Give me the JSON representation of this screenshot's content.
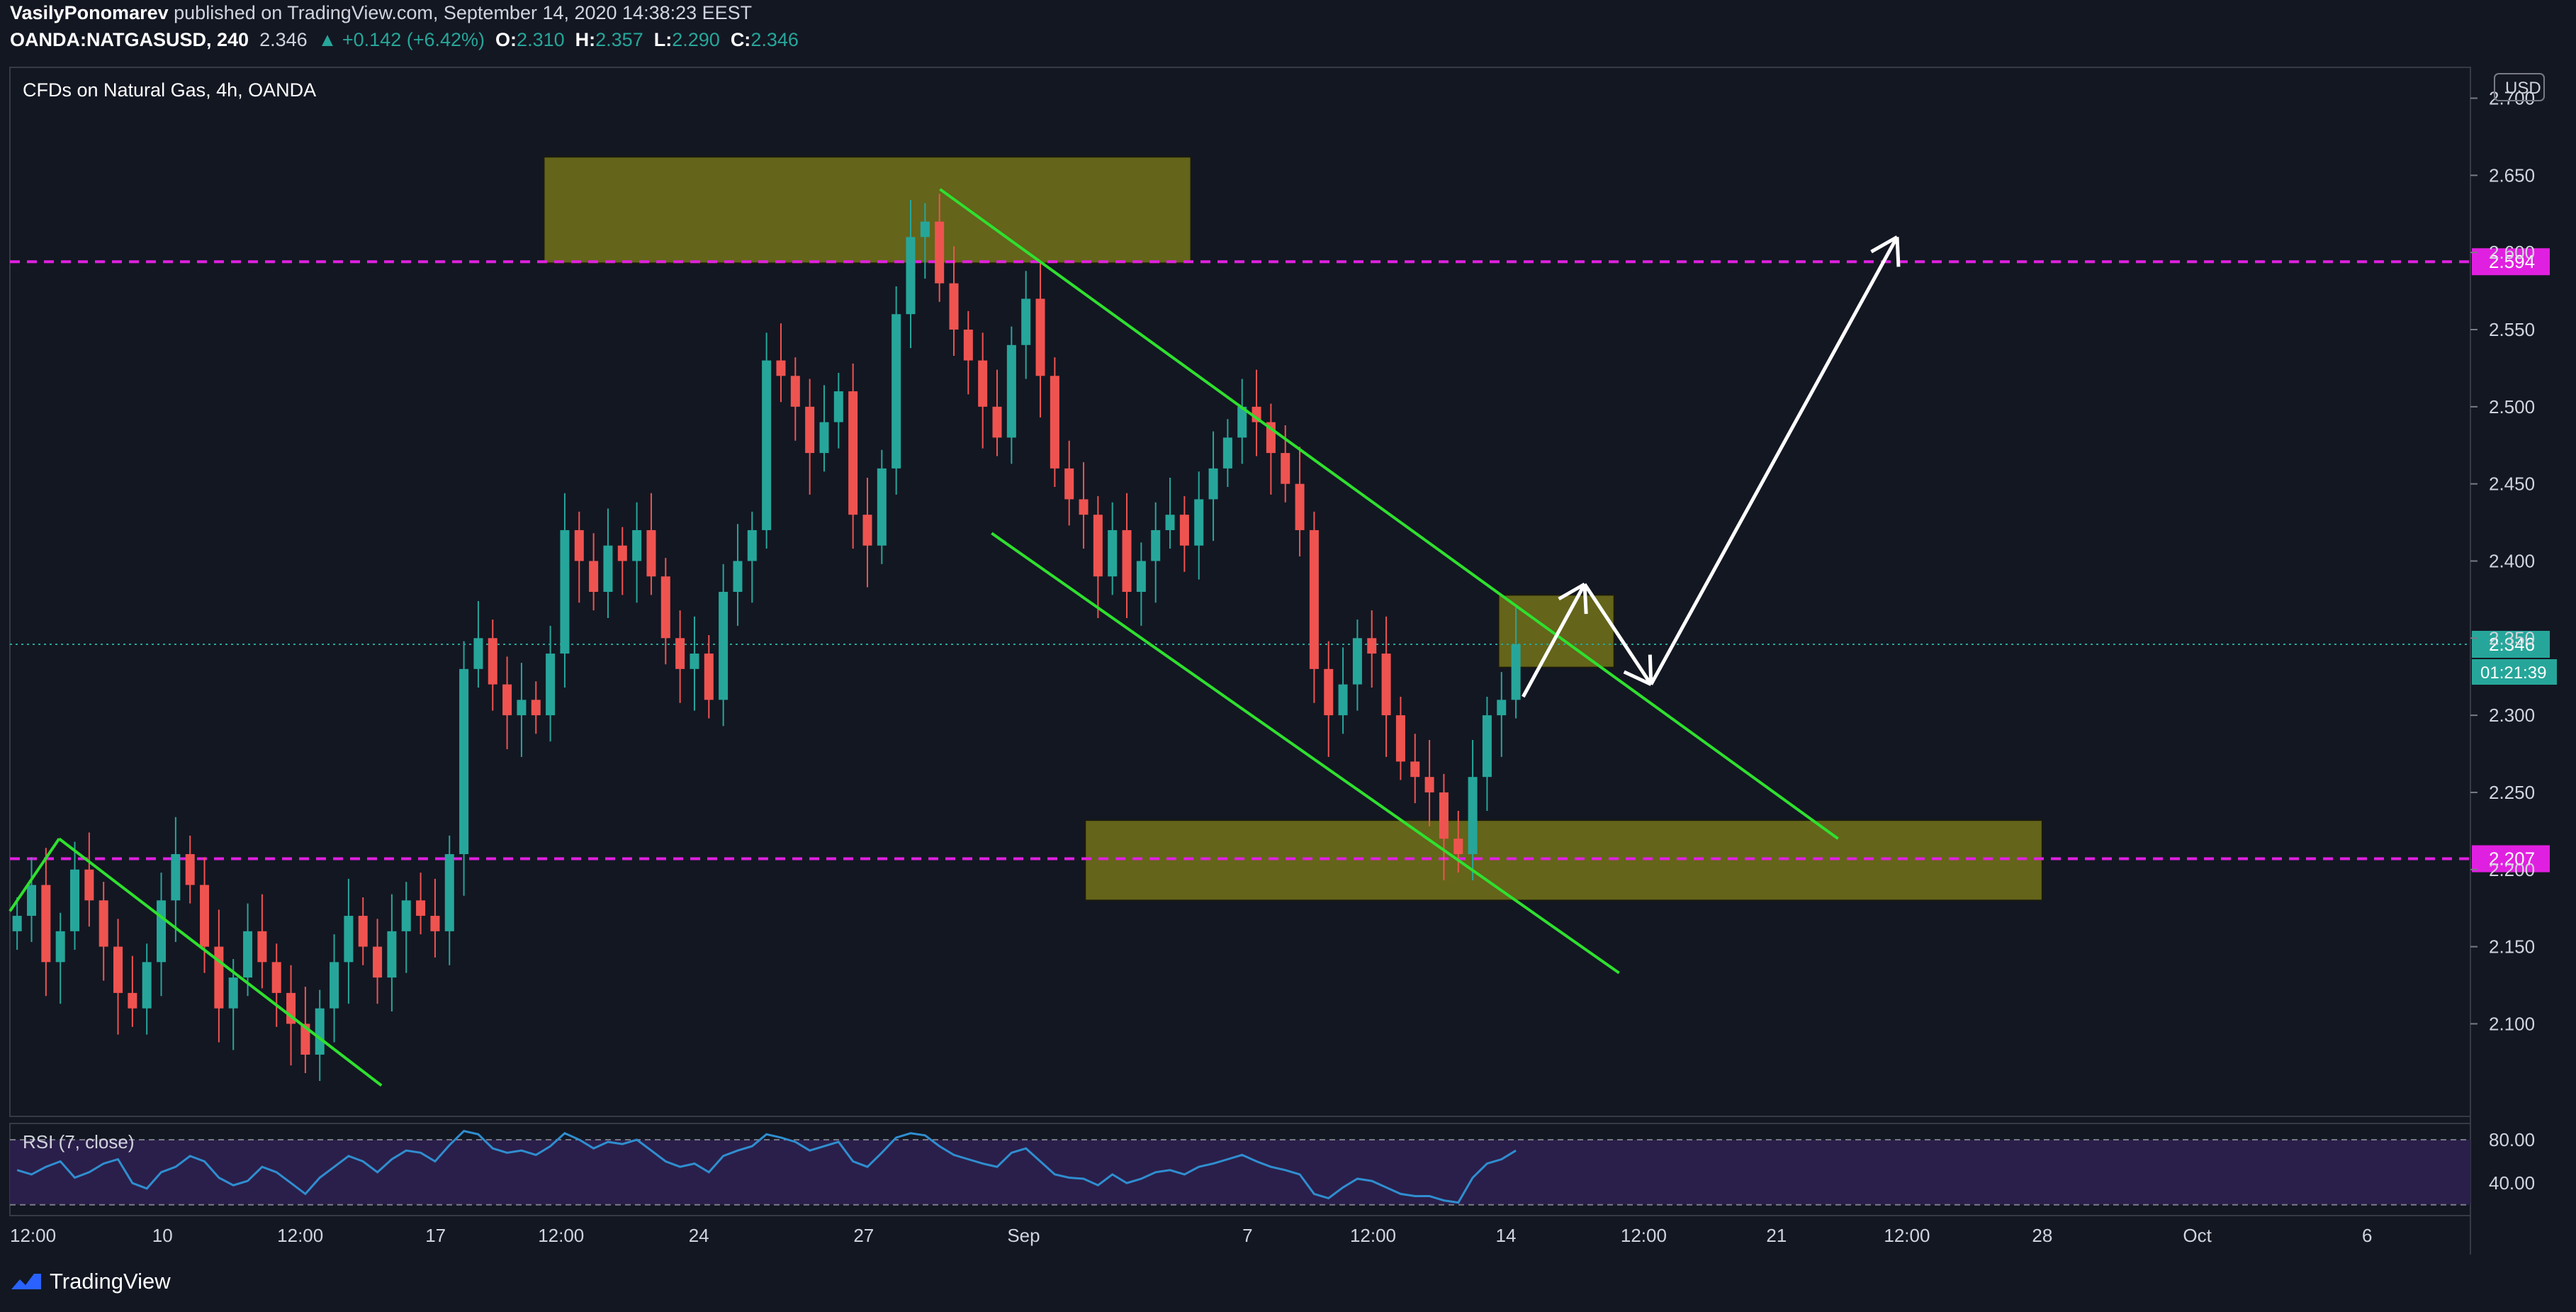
{
  "header": {
    "author": "VasilyPonomarev",
    "published": "published on TradingView.com, September 14, 2020 14:38:23 EEST",
    "symbol": "OANDA:NATGASUSD, 240",
    "last": "2.346",
    "change": "▲ +0.142 (+6.42%)",
    "o_label": "O:",
    "o": "2.310",
    "h_label": "H:",
    "h": "2.357",
    "l_label": "L:",
    "l": "2.290",
    "c_label": "C:",
    "c": "2.346"
  },
  "chart_title": "CFDs on Natural Gas, 4h, OANDA",
  "currency_badge": "USD",
  "rsi_title": "RSI (7, close)",
  "footer_brand": "TradingView",
  "colors": {
    "background": "#131722",
    "up": "#26a69a",
    "down": "#ef5350",
    "zone": "#6b6b1a",
    "trend": "#2fe02f",
    "level": "#e020e0",
    "rsi_line": "#2f8ed0",
    "rsi_band": "#2a1f4a"
  },
  "chart_data": {
    "type": "candlestick",
    "title": "CFDs on Natural Gas, 4h, OANDA",
    "ylim": [
      2.04,
      2.72
    ],
    "yticks": [
      "2.700",
      "2.650",
      "2.600",
      "2.550",
      "2.500",
      "2.450",
      "2.400",
      "2.350",
      "2.300",
      "2.250",
      "2.200",
      "2.150",
      "2.100"
    ],
    "xticks": [
      {
        "label": "12:00",
        "pos": 0.0
      },
      {
        "label": "10",
        "pos": 0.062
      },
      {
        "label": "12:00",
        "pos": 0.118
      },
      {
        "label": "17",
        "pos": 0.173
      },
      {
        "label": "12:00",
        "pos": 0.224
      },
      {
        "label": "24",
        "pos": 0.28
      },
      {
        "label": "27",
        "pos": 0.347
      },
      {
        "label": "Sep",
        "pos": 0.412
      },
      {
        "label": "7",
        "pos": 0.503
      },
      {
        "label": "12:00",
        "pos": 0.554
      },
      {
        "label": "14",
        "pos": 0.608
      },
      {
        "label": "12:00",
        "pos": 0.664
      },
      {
        "label": "21",
        "pos": 0.718
      },
      {
        "label": "12:00",
        "pos": 0.771
      },
      {
        "label": "28",
        "pos": 0.826
      },
      {
        "label": "Oct",
        "pos": 0.889
      },
      {
        "label": "6",
        "pos": 0.958
      }
    ],
    "close_series": [
      2.17,
      2.19,
      2.14,
      2.16,
      2.2,
      2.18,
      2.15,
      2.12,
      2.11,
      2.14,
      2.18,
      2.21,
      2.19,
      2.15,
      2.11,
      2.13,
      2.16,
      2.14,
      2.12,
      2.1,
      2.08,
      2.11,
      2.14,
      2.17,
      2.15,
      2.13,
      2.16,
      2.18,
      2.17,
      2.16,
      2.21,
      2.33,
      2.35,
      2.32,
      2.3,
      2.31,
      2.3,
      2.34,
      2.42,
      2.4,
      2.38,
      2.41,
      2.4,
      2.42,
      2.39,
      2.35,
      2.33,
      2.34,
      2.31,
      2.38,
      2.4,
      2.42,
      2.53,
      2.52,
      2.5,
      2.47,
      2.49,
      2.51,
      2.43,
      2.41,
      2.46,
      2.56,
      2.61,
      2.62,
      2.58,
      2.55,
      2.53,
      2.5,
      2.48,
      2.54,
      2.57,
      2.52,
      2.46,
      2.44,
      2.43,
      2.39,
      2.42,
      2.38,
      2.4,
      2.42,
      2.43,
      2.41,
      2.44,
      2.46,
      2.48,
      2.5,
      2.49,
      2.47,
      2.45,
      2.42,
      2.33,
      2.3,
      2.32,
      2.35,
      2.34,
      2.3,
      2.27,
      2.26,
      2.25,
      2.22,
      2.21,
      2.26,
      2.3,
      2.31,
      2.346
    ],
    "current_price": "2.346",
    "countdown": "01:21:39",
    "levels": [
      {
        "label": "2.594",
        "value": 2.594
      },
      {
        "label": "2.207",
        "value": 2.207
      }
    ],
    "zones": [
      {
        "name": "supply",
        "x0": 0.217,
        "x1": 0.48,
        "y0": 2.593,
        "y1": 2.662
      },
      {
        "name": "mid",
        "x0": 0.605,
        "x1": 0.652,
        "y0": 2.331,
        "y1": 2.378
      },
      {
        "name": "demand",
        "x0": 0.437,
        "x1": 0.826,
        "y0": 2.18,
        "y1": 2.232
      }
    ],
    "trendlines": [
      {
        "x0": 0.0,
        "y0": 2.173,
        "x1": 0.02,
        "y1": 2.22
      },
      {
        "x0": 0.02,
        "y0": 2.22,
        "x1": 0.151,
        "y1": 2.06
      },
      {
        "x0": 0.378,
        "y0": 2.641,
        "x1": 0.743,
        "y1": 2.22
      },
      {
        "x0": 0.399,
        "y0": 2.418,
        "x1": 0.654,
        "y1": 2.133
      }
    ],
    "projection": [
      {
        "x": 0.615,
        "y": 2.312
      },
      {
        "x": 0.64,
        "y": 2.385
      },
      {
        "x": 0.667,
        "y": 2.32
      },
      {
        "x": 0.767,
        "y": 2.61
      }
    ],
    "rsi": {
      "ylim": [
        10,
        95
      ],
      "ticks": [
        "80.00",
        "40.00"
      ],
      "bands": [
        80,
        20
      ],
      "values": [
        52,
        48,
        55,
        60,
        45,
        50,
        58,
        62,
        40,
        35,
        50,
        55,
        65,
        60,
        45,
        38,
        42,
        55,
        50,
        40,
        30,
        45,
        55,
        65,
        60,
        50,
        62,
        70,
        68,
        60,
        75,
        88,
        85,
        72,
        68,
        70,
        66,
        74,
        86,
        80,
        72,
        78,
        76,
        80,
        70,
        60,
        55,
        58,
        50,
        65,
        70,
        74,
        85,
        82,
        78,
        70,
        74,
        78,
        60,
        55,
        68,
        82,
        86,
        84,
        74,
        66,
        62,
        58,
        55,
        68,
        72,
        60,
        48,
        45,
        44,
        38,
        48,
        40,
        44,
        50,
        52,
        48,
        55,
        58,
        62,
        66,
        60,
        55,
        52,
        48,
        30,
        26,
        36,
        44,
        42,
        36,
        30,
        28,
        28,
        24,
        22,
        45,
        58,
        62,
        70
      ]
    }
  }
}
